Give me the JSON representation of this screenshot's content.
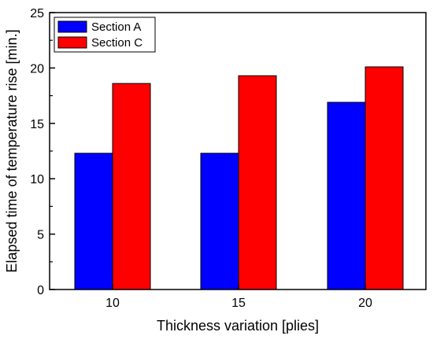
{
  "chart_data": {
    "type": "bar",
    "title": "",
    "xlabel": "Thickness variation [plies]",
    "ylabel": "Elapsed time of temperature rise [min.]",
    "categories": [
      "10",
      "15",
      "20"
    ],
    "series": [
      {
        "name": "Section A",
        "color": "#0000ff",
        "values": [
          12.3,
          12.3,
          16.9
        ]
      },
      {
        "name": "Section C",
        "color": "#ff0000",
        "values": [
          18.6,
          19.3,
          20.1
        ]
      }
    ],
    "ylim": [
      0,
      25
    ],
    "yticks": [
      "0",
      "5",
      "10",
      "15",
      "20",
      "25"
    ],
    "grid": false,
    "legend_position": "top-left"
  }
}
